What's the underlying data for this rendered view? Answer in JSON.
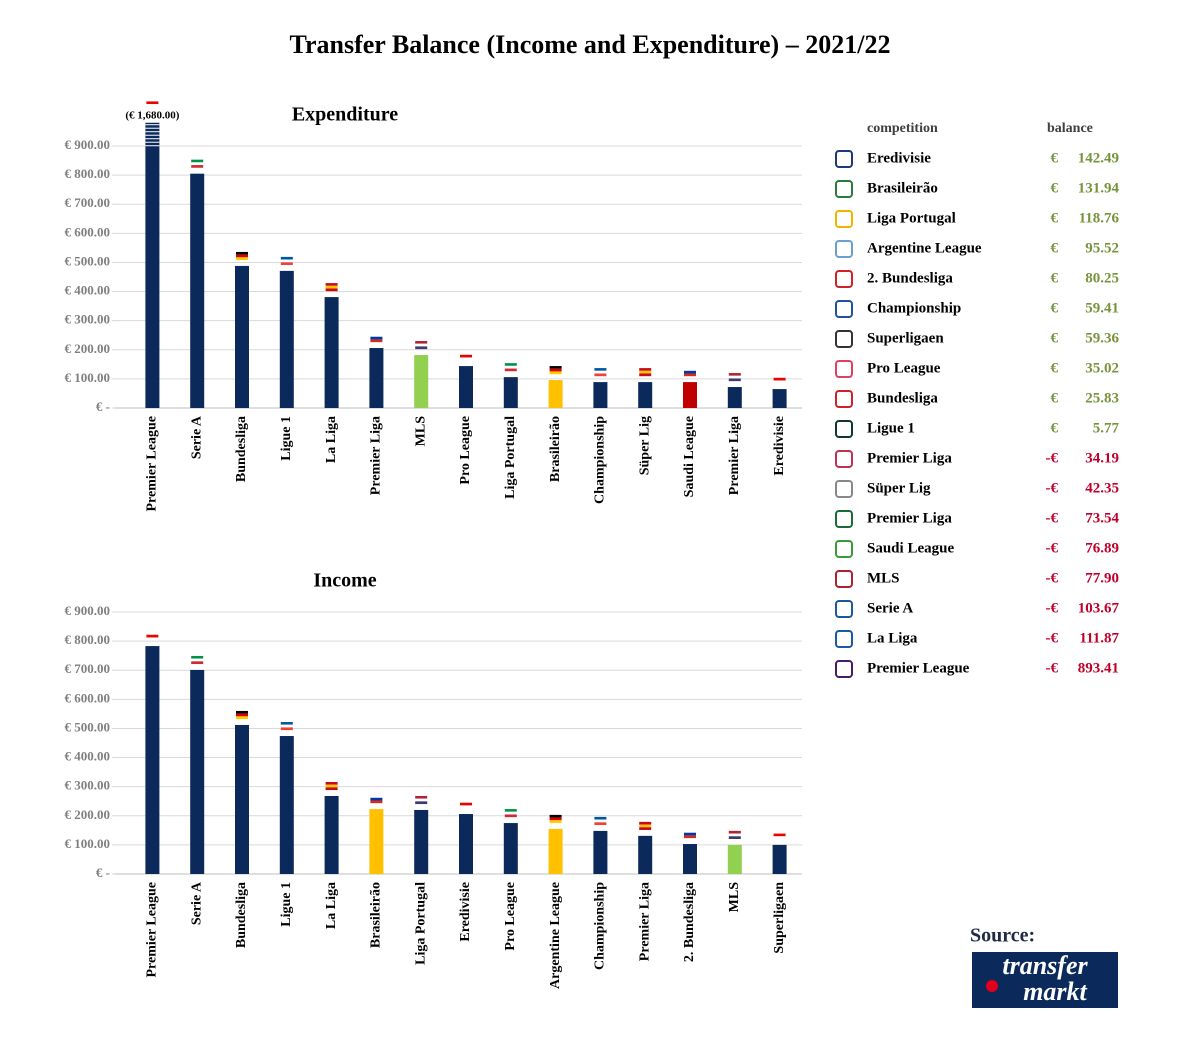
{
  "title": "Transfer Balance (Income and Expenditure) – 2021/22",
  "chart_data": [
    {
      "type": "bar",
      "title": "Expenditure",
      "categories": [
        "Premier League",
        "Serie A",
        "Bundesliga",
        "Ligue 1",
        "La Liga",
        "Premier Liga",
        "MLS",
        "Pro League",
        "Liga Portugal",
        "Brasileirão",
        "Championship",
        "Süper Lig",
        "Saudi League",
        "Premier Liga",
        "Eredivisie"
      ],
      "values": [
        1680,
        805,
        488,
        471,
        381,
        206,
        182,
        144,
        106,
        96,
        89,
        89,
        89,
        72,
        65
      ],
      "value_labels": [
        "(€ 1,680.00)",
        null,
        null,
        null,
        null,
        null,
        null,
        null,
        null,
        null,
        null,
        null,
        null,
        null,
        null
      ],
      "colors": [
        "#0b2a5b",
        "#0b2a5b",
        "#0b2a5b",
        "#0b2a5b",
        "#0b2a5b",
        "#0b2a5b",
        "#92d050",
        "#0b2a5b",
        "#0b2a5b",
        "#ffc000",
        "#0b2a5b",
        "#0b2a5b",
        "#c00000",
        "#0b2a5b",
        "#0b2a5b"
      ],
      "ylim": [
        0,
        980
      ],
      "yticks": [
        {
          "value": 0,
          "label": "€ -"
        },
        {
          "value": 100,
          "label": "€ 100.00"
        },
        {
          "value": 200,
          "label": "€ 200.00"
        },
        {
          "value": 300,
          "label": "€ 300.00"
        },
        {
          "value": 400,
          "label": "€ 400.00"
        },
        {
          "value": 500,
          "label": "€ 500.00"
        },
        {
          "value": 600,
          "label": "€ 600.00"
        },
        {
          "value": 700,
          "label": "€ 700.00"
        },
        {
          "value": 800,
          "label": "€ 800.00"
        },
        {
          "value": 900,
          "label": "€ 900.00"
        }
      ],
      "grid": true
    },
    {
      "type": "bar",
      "title": "Income",
      "categories": [
        "Premier League",
        "Serie A",
        "Bundesliga",
        "Ligue 1",
        "La Liga",
        "Brasileirão",
        "Liga Portugal",
        "Eredivisie",
        "Pro League",
        "Argentine League",
        "Championship",
        "Premier Liga",
        "2. Bundesliga",
        "MLS",
        "Superligaen"
      ],
      "values": [
        783,
        701,
        512,
        474,
        268,
        223,
        220,
        206,
        175,
        155,
        148,
        131,
        103,
        100,
        100
      ],
      "colors": [
        "#0b2a5b",
        "#0b2a5b",
        "#0b2a5b",
        "#0b2a5b",
        "#0b2a5b",
        "#ffc000",
        "#0b2a5b",
        "#0b2a5b",
        "#0b2a5b",
        "#ffc000",
        "#0b2a5b",
        "#0b2a5b",
        "#0b2a5b",
        "#92d050",
        "#0b2a5b"
      ],
      "ylim": [
        0,
        900
      ],
      "yticks": [
        {
          "value": 0,
          "label": "€ -"
        },
        {
          "value": 100,
          "label": "€ 100.00"
        },
        {
          "value": 200,
          "label": "€ 200.00"
        },
        {
          "value": 300,
          "label": "€ 300.00"
        },
        {
          "value": 400,
          "label": "€ 400.00"
        },
        {
          "value": 500,
          "label": "€ 500.00"
        },
        {
          "value": 600,
          "label": "€ 600.00"
        },
        {
          "value": 700,
          "label": "€ 700.00"
        },
        {
          "value": 800,
          "label": "€ 800.00"
        },
        {
          "value": 900,
          "label": "€ 900.00"
        }
      ],
      "grid": true
    }
  ],
  "table": {
    "header": [
      "competition",
      "balance"
    ],
    "rows": [
      {
        "name": "Eredivisie",
        "currency": "€",
        "amount": "142.49"
      },
      {
        "name": "Brasileirão",
        "currency": "€",
        "amount": "131.94"
      },
      {
        "name": "Liga Portugal",
        "currency": "€",
        "amount": "118.76"
      },
      {
        "name": "Argentine League",
        "currency": "€",
        "amount": "95.52"
      },
      {
        "name": "2. Bundesliga",
        "currency": "€",
        "amount": "80.25"
      },
      {
        "name": "Championship",
        "currency": "€",
        "amount": "59.41"
      },
      {
        "name": "Superligaen",
        "currency": "€",
        "amount": "59.36"
      },
      {
        "name": "Pro League",
        "currency": "€",
        "amount": "35.02"
      },
      {
        "name": "Bundesliga",
        "currency": "€",
        "amount": "25.83"
      },
      {
        "name": "Ligue 1",
        "currency": "€",
        "amount": "5.77"
      },
      {
        "name": "Premier Liga",
        "currency": "-€",
        "amount": "34.19"
      },
      {
        "name": "Süper Lig",
        "currency": "-€",
        "amount": "42.35"
      },
      {
        "name": "Premier Liga",
        "currency": "-€",
        "amount": "73.54"
      },
      {
        "name": "Saudi League",
        "currency": "-€",
        "amount": "76.89"
      },
      {
        "name": "MLS",
        "currency": "-€",
        "amount": "77.90"
      },
      {
        "name": "Serie A",
        "currency": "-€",
        "amount": "103.67"
      },
      {
        "name": "La Liga",
        "currency": "-€",
        "amount": "111.87"
      },
      {
        "name": "Premier League",
        "currency": "-€",
        "amount": "893.41"
      }
    ]
  },
  "source": {
    "label": "Source:",
    "logo": [
      "transfer",
      "markt"
    ]
  }
}
